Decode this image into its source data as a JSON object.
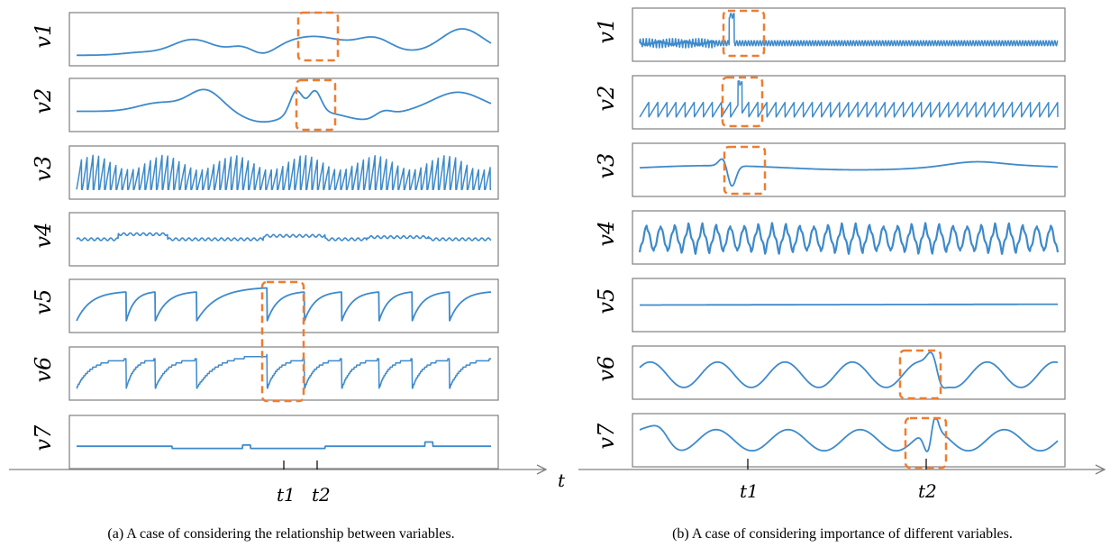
{
  "panels": [
    {
      "id": "a",
      "caption": "(a)  A case of considering the relationship between variables.",
      "time_marks": [
        "t1",
        "t2"
      ],
      "variables": [
        {
          "name": "v1",
          "pattern": "smooth"
        },
        {
          "name": "v2",
          "pattern": "smooth"
        },
        {
          "name": "v3",
          "pattern": "sawtooth-dense"
        },
        {
          "name": "v4",
          "pattern": "flat-steps"
        },
        {
          "name": "v5",
          "pattern": "charge-discharge"
        },
        {
          "name": "v6",
          "pattern": "charge-discharge-stepped"
        },
        {
          "name": "v7",
          "pattern": "flat-steps"
        }
      ]
    },
    {
      "id": "b",
      "caption": "(b)  A case of considering importance of different variables.",
      "time_marks": [
        "t1",
        "t2"
      ],
      "variables": [
        {
          "name": "v1",
          "pattern": "noisy-flat-with-spike"
        },
        {
          "name": "v2",
          "pattern": "sawtooth-with-spike"
        },
        {
          "name": "v3",
          "pattern": "flat-with-dip"
        },
        {
          "name": "v4",
          "pattern": "zigzag"
        },
        {
          "name": "v5",
          "pattern": "flat"
        },
        {
          "name": "v6",
          "pattern": "wave-with-anomaly"
        },
        {
          "name": "v7",
          "pattern": "wave-with-anomaly"
        }
      ]
    }
  ],
  "axis_label": "t",
  "colors": {
    "signal": "#3e8acb",
    "highlight": "#ed7d31",
    "frame": "#7f7f7f",
    "axis": "#808080"
  }
}
